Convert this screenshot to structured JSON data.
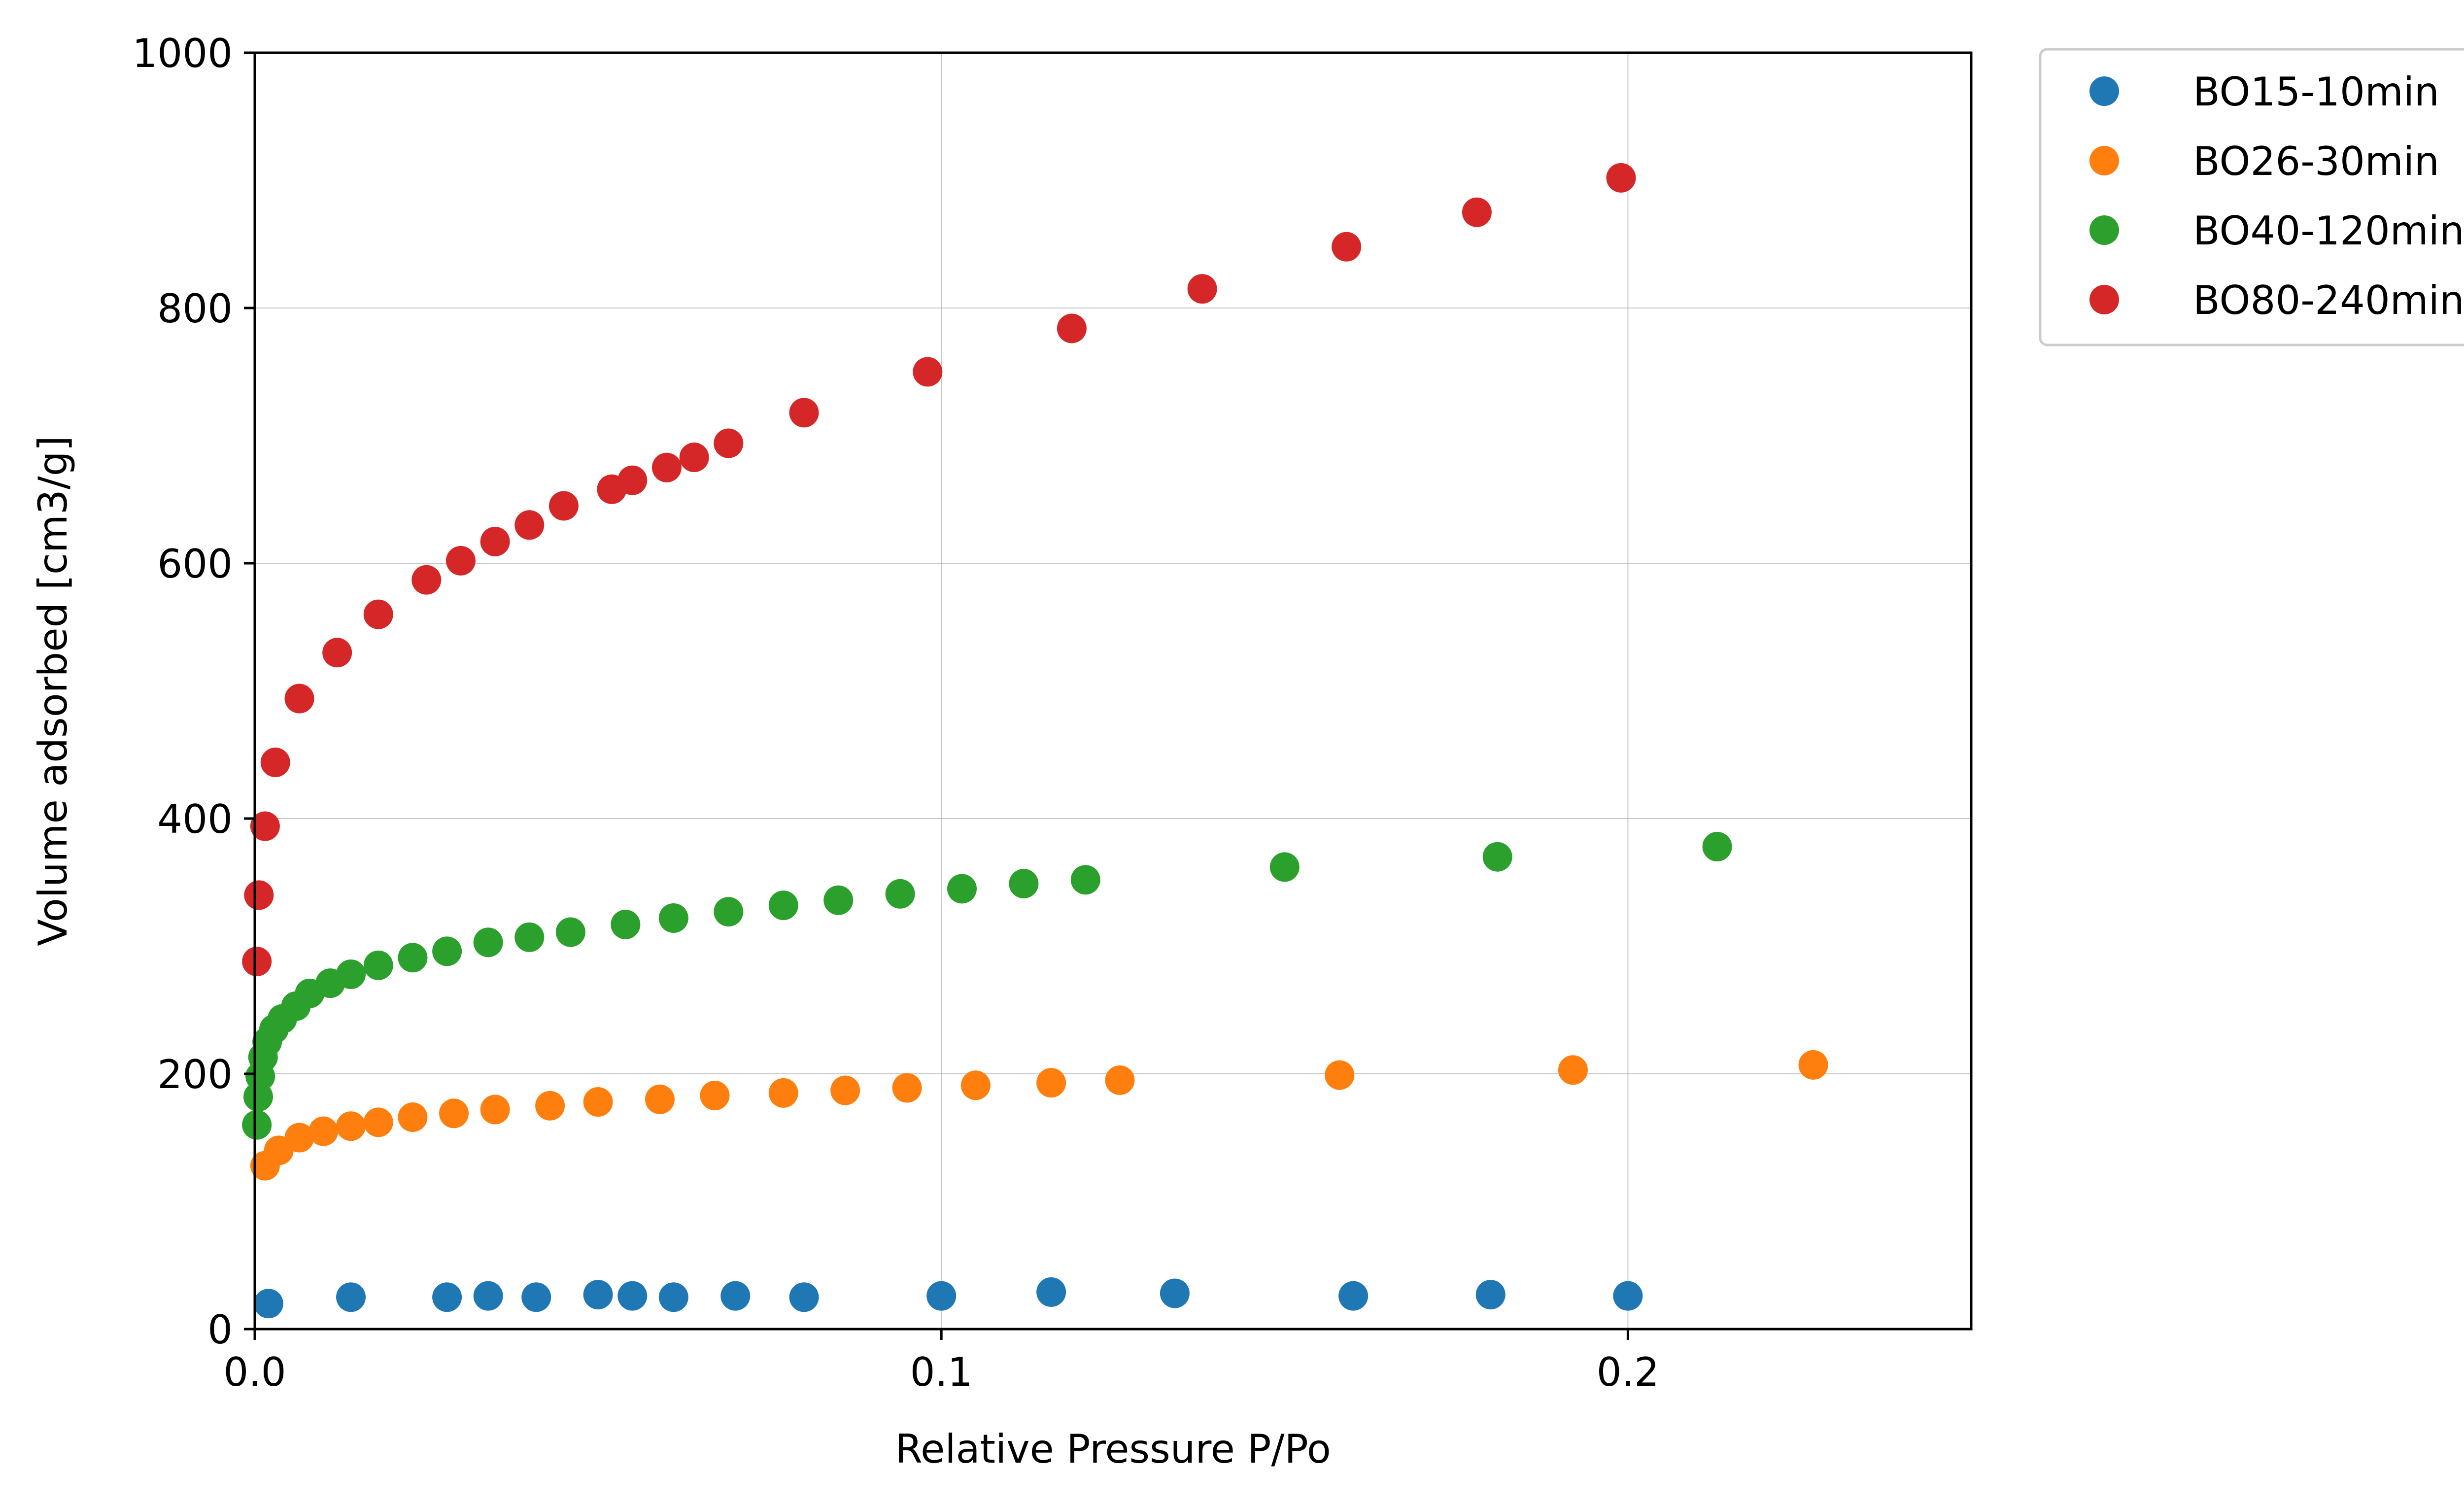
{
  "chart_data": {
    "type": "scatter",
    "xlabel": "Relative Pressure P/Po",
    "ylabel": "Volume adsorbed [cm3/g]",
    "xlim": [
      0.0,
      0.25
    ],
    "ylim": [
      0,
      1000
    ],
    "xticks": [
      {
        "value": 0.0,
        "label": "0.0"
      },
      {
        "value": 0.1,
        "label": "0.1"
      },
      {
        "value": 0.2,
        "label": "0.2"
      }
    ],
    "yticks": [
      {
        "value": 0,
        "label": "0"
      },
      {
        "value": 200,
        "label": "200"
      },
      {
        "value": 400,
        "label": "400"
      },
      {
        "value": 600,
        "label": "600"
      },
      {
        "value": 800,
        "label": "800"
      },
      {
        "value": 1000,
        "label": "1000"
      }
    ],
    "grid": true,
    "legend_position": "outside-top-right",
    "series": [
      {
        "name": "BO15-10min",
        "color": "#1f77b4",
        "points": [
          [
            0.002,
            20
          ],
          [
            0.014,
            25
          ],
          [
            0.028,
            25
          ],
          [
            0.034,
            26
          ],
          [
            0.041,
            25
          ],
          [
            0.05,
            27
          ],
          [
            0.055,
            26
          ],
          [
            0.061,
            25
          ],
          [
            0.07,
            26
          ],
          [
            0.08,
            25
          ],
          [
            0.1,
            26
          ],
          [
            0.116,
            29
          ],
          [
            0.134,
            28
          ],
          [
            0.16,
            26
          ],
          [
            0.18,
            27
          ],
          [
            0.2,
            26
          ]
        ]
      },
      {
        "name": "BO26-30min",
        "color": "#ff7f0e",
        "points": [
          [
            0.0015,
            128
          ],
          [
            0.0035,
            140
          ],
          [
            0.0065,
            150
          ],
          [
            0.01,
            155
          ],
          [
            0.014,
            159
          ],
          [
            0.018,
            162
          ],
          [
            0.023,
            166
          ],
          [
            0.029,
            169
          ],
          [
            0.035,
            172
          ],
          [
            0.043,
            175
          ],
          [
            0.05,
            178
          ],
          [
            0.059,
            180
          ],
          [
            0.067,
            183
          ],
          [
            0.077,
            185
          ],
          [
            0.086,
            187
          ],
          [
            0.095,
            189
          ],
          [
            0.105,
            191
          ],
          [
            0.116,
            193
          ],
          [
            0.126,
            195
          ],
          [
            0.158,
            199
          ],
          [
            0.192,
            203
          ],
          [
            0.227,
            207
          ]
        ]
      },
      {
        "name": "BO40-120min",
        "color": "#2ca02c",
        "points": [
          [
            0.0003,
            160
          ],
          [
            0.0005,
            182
          ],
          [
            0.0008,
            198
          ],
          [
            0.0012,
            213
          ],
          [
            0.0018,
            225
          ],
          [
            0.0028,
            235
          ],
          [
            0.004,
            243
          ],
          [
            0.006,
            253
          ],
          [
            0.008,
            263
          ],
          [
            0.011,
            271
          ],
          [
            0.014,
            278
          ],
          [
            0.018,
            285
          ],
          [
            0.023,
            291
          ],
          [
            0.028,
            296
          ],
          [
            0.034,
            303
          ],
          [
            0.04,
            307
          ],
          [
            0.046,
            311
          ],
          [
            0.054,
            317
          ],
          [
            0.061,
            322
          ],
          [
            0.069,
            327
          ],
          [
            0.077,
            332
          ],
          [
            0.085,
            336
          ],
          [
            0.094,
            341
          ],
          [
            0.103,
            345
          ],
          [
            0.112,
            349
          ],
          [
            0.121,
            352
          ],
          [
            0.15,
            362
          ],
          [
            0.181,
            370
          ],
          [
            0.213,
            378
          ]
        ]
      },
      {
        "name": "BO80-240min",
        "color": "#d62728",
        "points": [
          [
            0.0003,
            288
          ],
          [
            0.0006,
            340
          ],
          [
            0.0015,
            394
          ],
          [
            0.003,
            444
          ],
          [
            0.0065,
            494
          ],
          [
            0.012,
            530
          ],
          [
            0.018,
            560
          ],
          [
            0.025,
            587
          ],
          [
            0.03,
            602
          ],
          [
            0.035,
            617
          ],
          [
            0.04,
            630
          ],
          [
            0.045,
            645
          ],
          [
            0.052,
            658
          ],
          [
            0.055,
            665
          ],
          [
            0.06,
            675
          ],
          [
            0.064,
            683
          ],
          [
            0.069,
            694
          ],
          [
            0.08,
            718
          ],
          [
            0.098,
            750
          ],
          [
            0.119,
            784
          ],
          [
            0.138,
            815
          ],
          [
            0.159,
            848
          ],
          [
            0.178,
            875
          ],
          [
            0.199,
            902
          ]
        ]
      }
    ]
  }
}
